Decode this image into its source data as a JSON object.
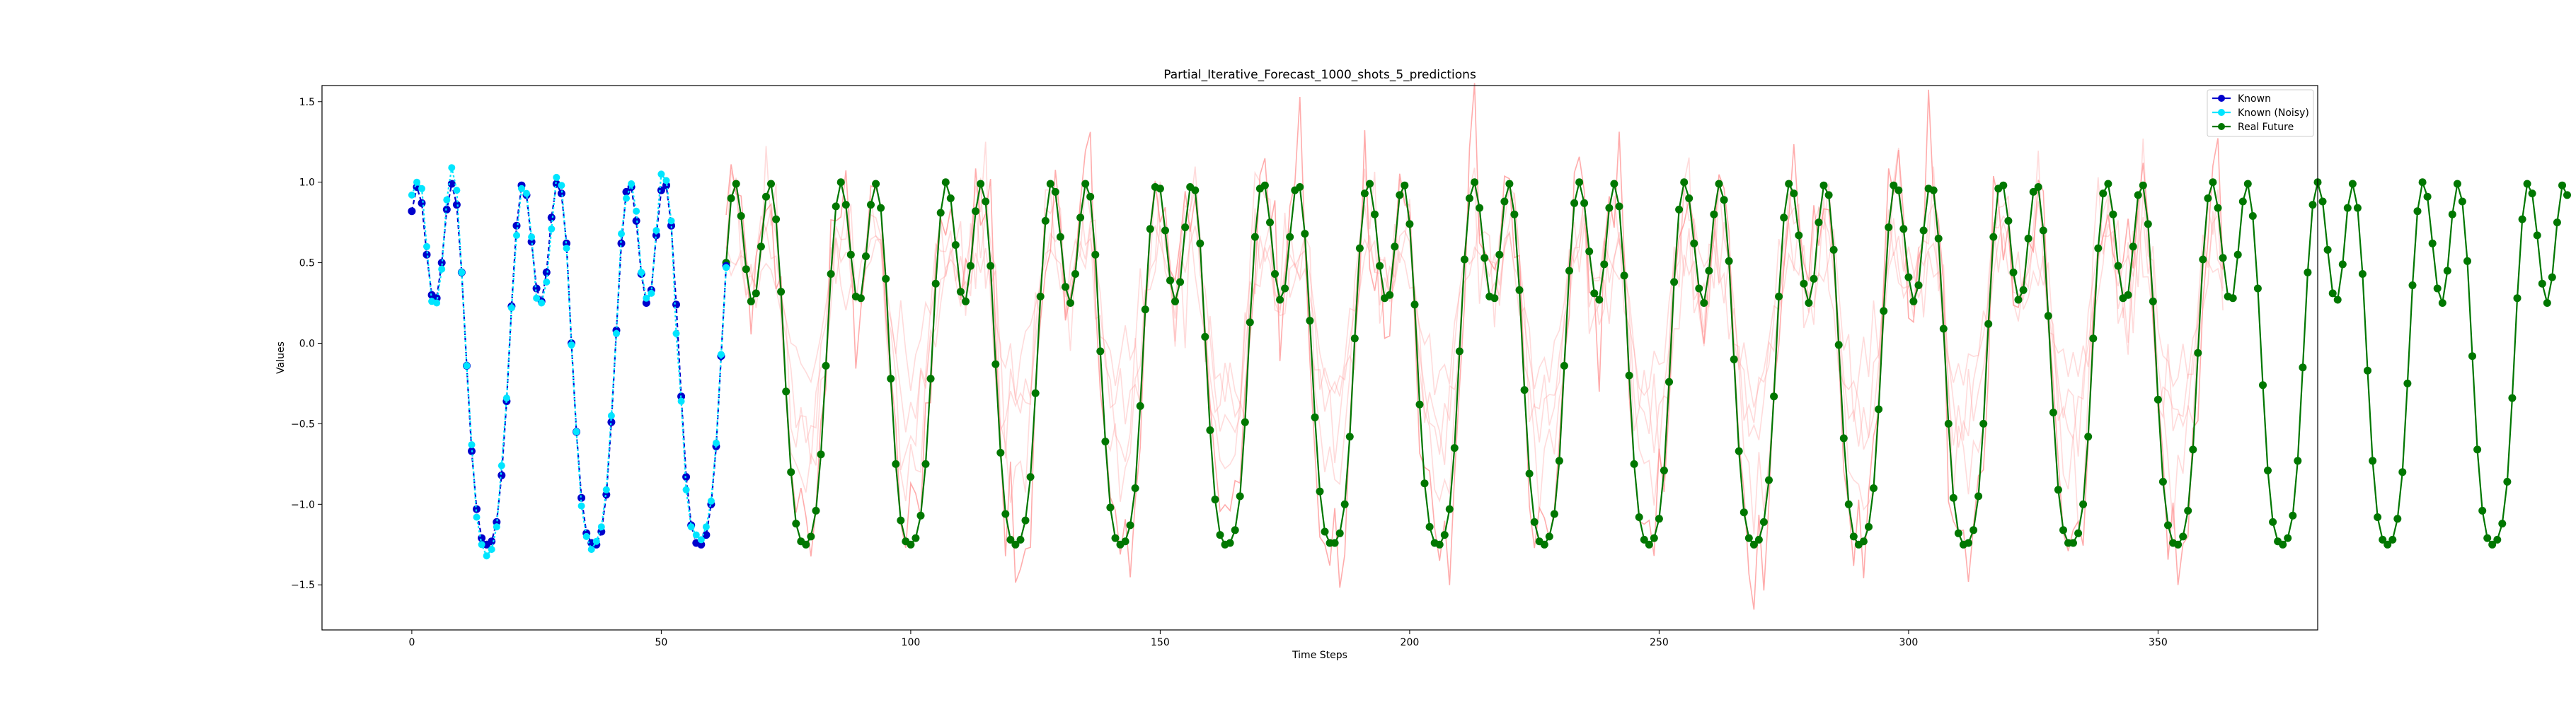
{
  "chart_data": {
    "type": "line",
    "title": "Partial_Iterative_Forecast_1000_shots_5_predictions",
    "xlabel": "Time Steps",
    "ylabel": "Values",
    "xlim": [
      -18,
      382
    ],
    "ylim": [
      -1.78,
      1.6
    ],
    "xticks": [
      0,
      50,
      100,
      150,
      200,
      250,
      300,
      350
    ],
    "yticks": [
      -1.5,
      -1.0,
      -0.5,
      0.0,
      0.5,
      1.0,
      1.5
    ],
    "xtick_labels": [
      "0",
      "50",
      "100",
      "150",
      "200",
      "250",
      "300",
      "350"
    ],
    "ytick_labels": [
      "−1.5",
      "−1.0",
      "−0.5",
      "0.0",
      "0.5",
      "1.0",
      "1.5"
    ],
    "grid": false,
    "legend_position": "top-right",
    "series": [
      {
        "name": "Known",
        "color": "#0000cc",
        "style": "dashed-with-markers",
        "x_start": 0,
        "values": [
          0.82,
          0.97,
          0.87,
          0.55,
          0.3,
          0.28,
          0.5,
          0.83,
          0.99,
          0.86,
          0.44,
          -0.14,
          -0.67,
          -1.03,
          -1.21,
          -1.25,
          -1.23,
          -1.11,
          -0.82,
          -0.36,
          0.23,
          0.73,
          0.98,
          0.92,
          0.63,
          0.34,
          0.26,
          0.44,
          0.78,
          0.99,
          0.93,
          0.62,
          0.0,
          -0.55,
          -0.96,
          -1.18,
          -1.24,
          -1.25,
          -1.17,
          -0.94,
          -0.49,
          0.08,
          0.62,
          0.94,
          0.97,
          0.76,
          0.43,
          0.25,
          0.33,
          0.67,
          0.95,
          0.98,
          0.73,
          0.24,
          -0.33,
          -0.83,
          -1.13,
          -1.24,
          -1.25,
          -1.19,
          -1.0,
          -0.64,
          -0.08,
          0.48
        ]
      },
      {
        "name": "Known (Noisy)",
        "color": "#00e5ff",
        "style": "line-with-markers",
        "x_start": 0,
        "values": [
          0.92,
          1.0,
          0.96,
          0.6,
          0.26,
          0.25,
          0.46,
          0.89,
          1.09,
          0.95,
          0.44,
          -0.14,
          -0.63,
          -1.08,
          -1.25,
          -1.32,
          -1.28,
          -1.14,
          -0.76,
          -0.34,
          0.22,
          0.67,
          0.96,
          0.93,
          0.66,
          0.28,
          0.25,
          0.38,
          0.71,
          1.03,
          0.98,
          0.59,
          -0.01,
          -0.55,
          -1.01,
          -1.2,
          -1.28,
          -1.23,
          -1.14,
          -0.91,
          -0.45,
          0.06,
          0.68,
          0.9,
          0.99,
          0.82,
          0.44,
          0.28,
          0.31,
          0.7,
          1.05,
          1.01,
          0.76,
          0.06,
          -0.36,
          -0.91,
          -1.14,
          -1.19,
          -1.22,
          -1.14,
          -0.98,
          -0.62,
          -0.07,
          0.47
        ]
      },
      {
        "name": "Real Future",
        "color": "#007700",
        "style": "line-with-markers",
        "x_start": 63,
        "values": [
          0.5,
          0.9,
          0.99,
          0.79,
          0.46,
          0.26,
          0.31,
          0.6,
          0.91,
          0.99,
          0.77,
          0.32,
          -0.3,
          -0.8,
          -1.12,
          -1.23,
          -1.25,
          -1.2,
          -1.04,
          -0.69,
          -0.14,
          0.43,
          0.85,
          1.0,
          0.86,
          0.55,
          0.29,
          0.28,
          0.54,
          0.86,
          0.99,
          0.84,
          0.4,
          -0.22,
          -0.75,
          -1.1,
          -1.23,
          -1.25,
          -1.21,
          -1.07,
          -0.75,
          -0.22,
          0.37,
          0.81,
          1.0,
          0.9,
          0.61,
          0.32,
          0.26,
          0.48,
          0.82,
          0.99,
          0.88,
          0.48,
          -0.13,
          -0.68,
          -1.06,
          -1.22,
          -1.25,
          -1.22,
          -1.1,
          -0.83,
          -0.31,
          0.29,
          0.76,
          0.99,
          0.94,
          0.66,
          0.35,
          0.25,
          0.43,
          0.78,
          0.99,
          0.91,
          0.55,
          -0.05,
          -0.61,
          -1.02,
          -1.21,
          -1.25,
          -1.23,
          -1.13,
          -0.9,
          -0.39,
          0.21,
          0.71,
          0.97,
          0.96,
          0.7,
          0.39,
          0.26,
          0.38,
          0.72,
          0.97,
          0.95,
          0.62,
          0.04,
          -0.54,
          -0.97,
          -1.19,
          -1.25,
          -1.24,
          -1.16,
          -0.95,
          -0.49,
          0.13,
          0.66,
          0.96,
          0.98,
          0.75,
          0.43,
          0.27,
          0.34,
          0.66,
          0.95,
          0.97,
          0.68,
          0.14,
          -0.46,
          -0.92,
          -1.17,
          -1.24,
          -1.24,
          -1.18,
          -1.0,
          -0.58,
          0.03,
          0.59,
          0.93,
          0.99,
          0.8,
          0.48,
          0.28,
          0.3,
          0.6,
          0.92,
          0.98,
          0.74,
          0.24,
          -0.38,
          -0.87,
          -1.14,
          -1.24,
          -1.25,
          -1.19,
          -1.03,
          -0.65,
          -0.05,
          0.52,
          0.9,
          1.0,
          0.84,
          0.53,
          0.29,
          0.28,
          0.55,
          0.88,
          0.99,
          0.8,
          0.33,
          -0.29,
          -0.81,
          -1.11,
          -1.23,
          -1.25,
          -1.2,
          -1.06,
          -0.73,
          -0.14,
          0.45,
          0.87,
          1.0,
          0.87,
          0.57,
          0.31,
          0.27,
          0.49,
          0.84,
          0.99,
          0.85,
          0.42,
          -0.2,
          -0.75,
          -1.08,
          -1.22,
          -1.25,
          -1.21,
          -1.09,
          -0.79,
          -0.24,
          0.38,
          0.83,
          1.0,
          0.9,
          0.62,
          0.34,
          0.25,
          0.45,
          0.8,
          0.99,
          0.89,
          0.51,
          -0.1,
          -0.67,
          -1.05,
          -1.21,
          -1.25,
          -1.22,
          -1.11,
          -0.85,
          -0.33,
          0.29,
          0.78,
          0.99,
          0.93,
          0.67,
          0.37,
          0.25,
          0.4,
          0.75,
          0.98,
          0.92,
          0.58,
          -0.01,
          -0.59,
          -1.0,
          -1.2,
          -1.25,
          -1.23,
          -1.14,
          -0.9,
          -0.41,
          0.2,
          0.72,
          0.98,
          0.95,
          0.71,
          0.41,
          0.26,
          0.36,
          0.7,
          0.96,
          0.95,
          0.65,
          0.09,
          -0.5,
          -0.96,
          -1.18,
          -1.25,
          -1.24,
          -1.16,
          -0.95,
          -0.5,
          0.12,
          0.66,
          0.96,
          0.98,
          0.76,
          0.44,
          0.27,
          0.33,
          0.65,
          0.94,
          0.97,
          0.7,
          0.17,
          -0.43,
          -0.91,
          -1.16,
          -1.24,
          -1.24,
          -1.18,
          -1.0,
          -0.58,
          0.03,
          0.59,
          0.93,
          0.99,
          0.8,
          0.48,
          0.28,
          0.3,
          0.6,
          0.92,
          0.98,
          0.74,
          0.26,
          -0.35,
          -0.86,
          -1.13,
          -1.24,
          -1.25,
          -1.2,
          -1.04,
          -0.66,
          -0.06,
          0.52,
          0.9,
          1.0,
          0.84,
          0.53,
          0.29,
          0.28,
          0.55,
          0.88,
          0.99,
          0.79,
          0.34,
          -0.26,
          -0.79,
          -1.11,
          -1.23,
          -1.25,
          -1.21,
          -1.07,
          -0.73,
          -0.15,
          0.44,
          0.86,
          1.0,
          0.88,
          0.58,
          0.31,
          0.27,
          0.49,
          0.84,
          0.99,
          0.84,
          0.43,
          -0.17,
          -0.73,
          -1.08,
          -1.22,
          -1.25,
          -1.22,
          -1.09,
          -0.8,
          -0.25,
          0.36,
          0.82,
          1.0,
          0.91,
          0.62,
          0.34,
          0.25,
          0.45,
          0.8,
          0.99,
          0.88,
          0.51,
          -0.08,
          -0.66,
          -1.04,
          -1.21,
          -1.25,
          -1.22,
          -1.12,
          -0.86,
          -0.34,
          0.28,
          0.77,
          0.99,
          0.93,
          0.67,
          0.37,
          0.25,
          0.41,
          0.75,
          0.98,
          0.92
        ]
      }
    ],
    "prediction_overlays": {
      "color": "#ff9090",
      "count": 5,
      "x_start": 63,
      "x_end": 363
    }
  }
}
